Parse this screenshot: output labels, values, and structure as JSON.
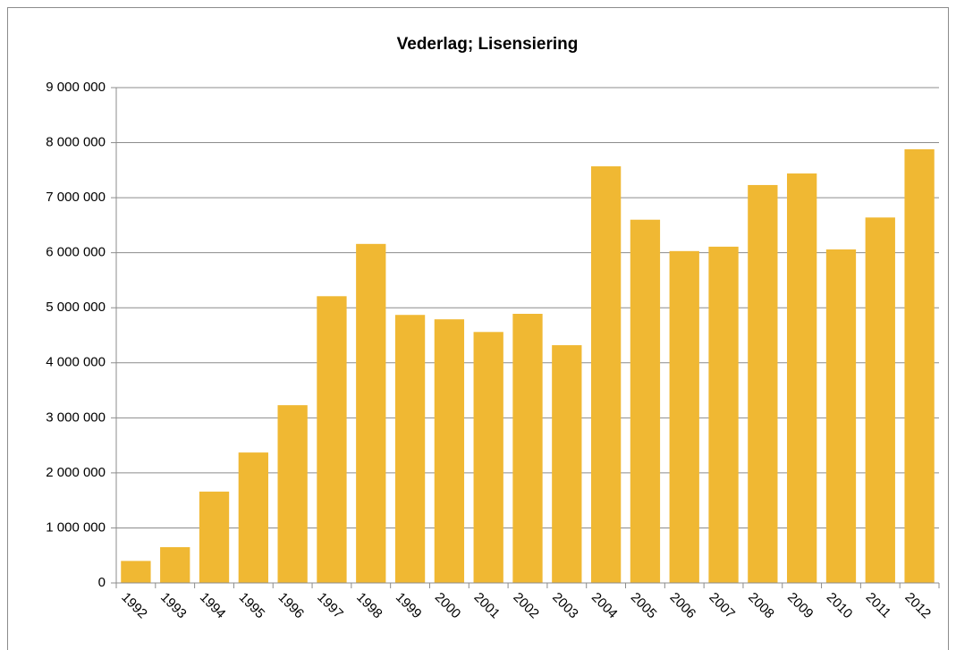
{
  "chart_data": {
    "type": "bar",
    "title": "Vederlag; Lisensiering",
    "categories": [
      "1992",
      "1993",
      "1994",
      "1995",
      "1996",
      "1997",
      "1998",
      "1999",
      "2000",
      "2001",
      "2002",
      "2003",
      "2004",
      "2005",
      "2006",
      "2007",
      "2008",
      "2009",
      "2010",
      "2011",
      "2012"
    ],
    "values": [
      400000,
      650000,
      1660000,
      2370000,
      3230000,
      5210000,
      6160000,
      4870000,
      4790000,
      4560000,
      4890000,
      4320000,
      7570000,
      6600000,
      6030000,
      6110000,
      7230000,
      7440000,
      6060000,
      6640000,
      7880000
    ],
    "color": "#f0b833",
    "ylim": [
      0,
      9000000
    ],
    "yticks": [
      0,
      {
        "value": 1000000,
        "label": "1 000 000"
      },
      {
        "value": 2000000,
        "label": "2 000 000"
      },
      {
        "value": 3000000,
        "label": "3 000 000"
      },
      {
        "value": 4000000,
        "label": "4 000 000"
      },
      {
        "value": 5000000,
        "label": "5 000 000"
      },
      {
        "value": 6000000,
        "label": "6 000 000"
      },
      {
        "value": 7000000,
        "label": "7 000 000"
      },
      {
        "value": 8000000,
        "label": "8 000 000"
      },
      {
        "value": 9000000,
        "label": "9 000 000"
      }
    ],
    "grid": true
  }
}
